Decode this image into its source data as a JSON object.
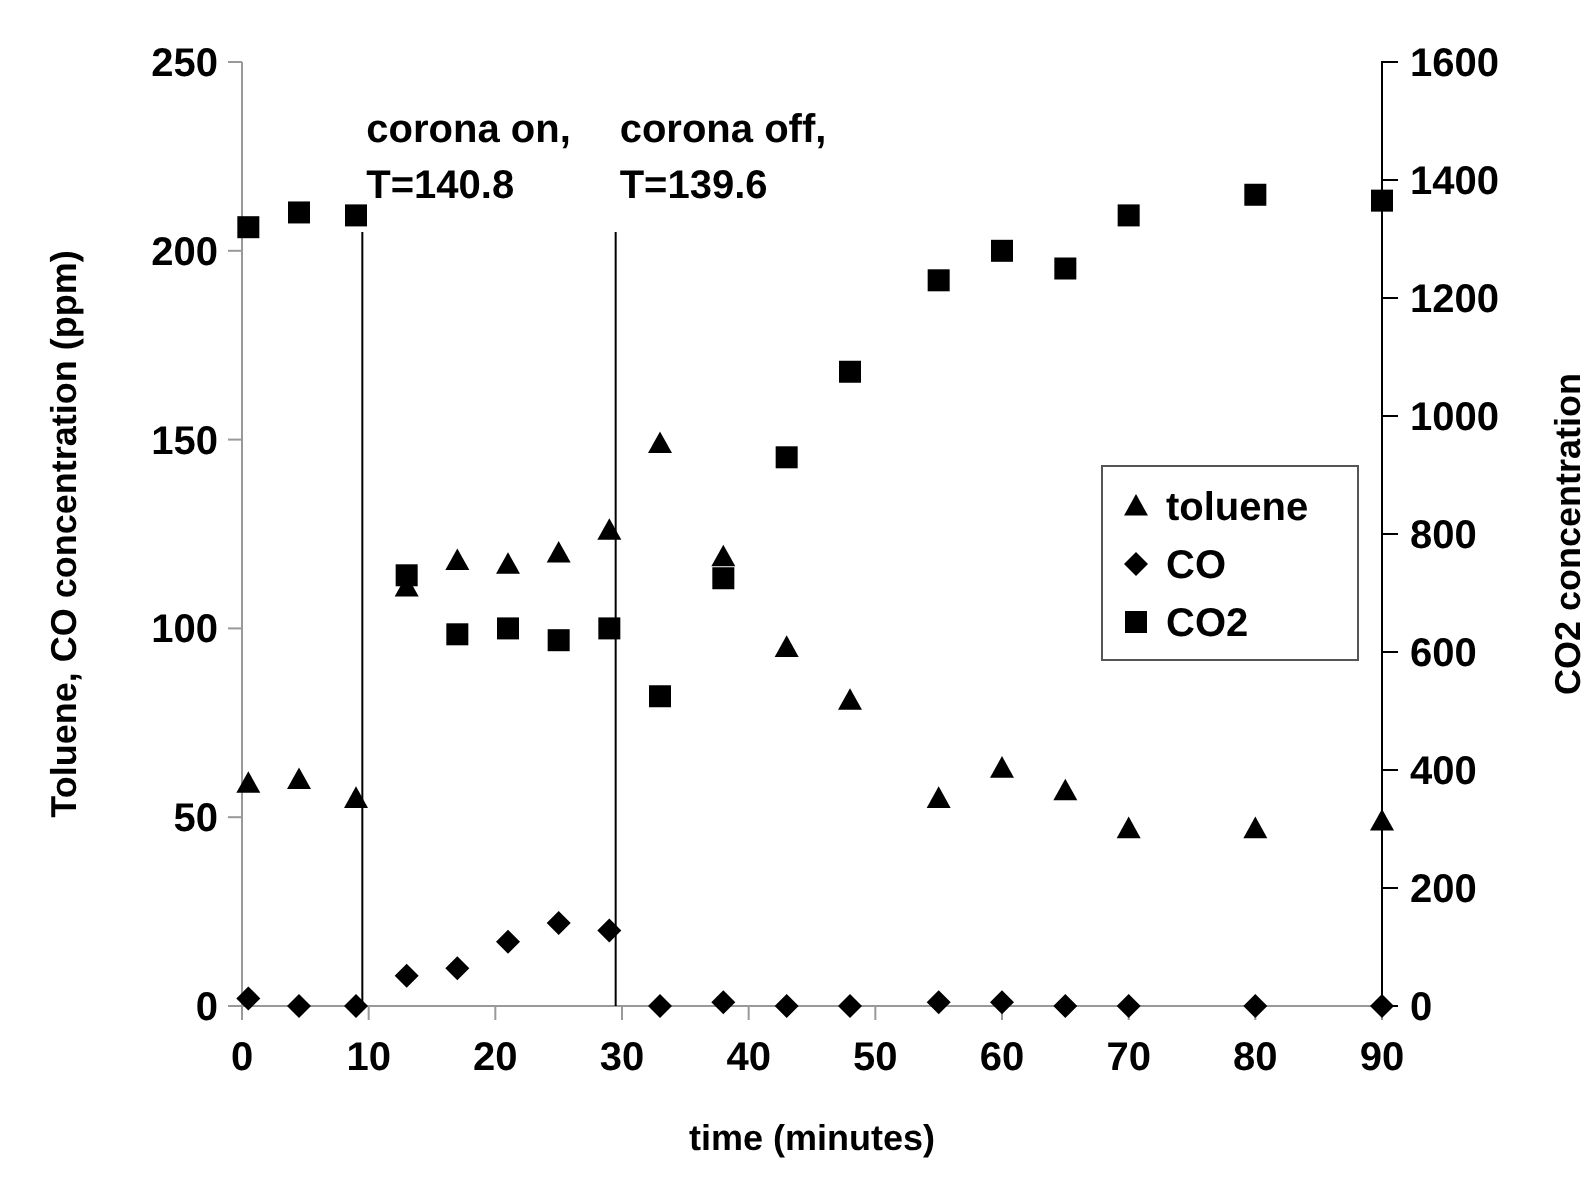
{
  "chart_data": {
    "type": "scatter",
    "xlabel": "time (minutes)",
    "ylabel": "Toluene, CO concentration (ppm)",
    "y2label": "CO2 concentration",
    "x": [
      0.5,
      4.5,
      9,
      13,
      17,
      21,
      25,
      29,
      33,
      38,
      43,
      48,
      55,
      60,
      65,
      70,
      80,
      90
    ],
    "xlim": [
      0,
      90
    ],
    "xticks": [
      0,
      10,
      20,
      30,
      40,
      50,
      60,
      70,
      80,
      90
    ],
    "ylim": [
      0,
      250
    ],
    "yticks": [
      0,
      50,
      100,
      150,
      200,
      250
    ],
    "y2lim": [
      0,
      1600
    ],
    "y2ticks": [
      0,
      200,
      400,
      600,
      800,
      1000,
      1200,
      1400,
      1600
    ],
    "series": [
      {
        "name": "toluene",
        "color": "#000000",
        "marker": "triangle",
        "values": [
          59,
          60,
          55,
          111,
          118,
          117,
          120,
          126,
          149,
          119,
          95,
          81,
          55,
          63,
          57,
          47,
          47,
          49
        ]
      },
      {
        "name": "CO",
        "color": "#000000",
        "marker": "diamond",
        "values": [
          2,
          0,
          0,
          8,
          10,
          17,
          22,
          20,
          0,
          1,
          0,
          0,
          1,
          1,
          0,
          0,
          0,
          0
        ]
      },
      {
        "name": "CO2",
        "color": "#000000",
        "marker": "square",
        "axis": "y2",
        "values": [
          1320,
          1345,
          1340,
          730,
          630,
          640,
          620,
          640,
          525,
          725,
          930,
          1075,
          1230,
          1280,
          1250,
          1340,
          1375,
          1365
        ]
      }
    ],
    "ref_lines": [
      {
        "axis": "x",
        "value": 9.5,
        "color": "#000000"
      },
      {
        "axis": "x",
        "value": 29.5,
        "color": "#000000"
      }
    ],
    "annotations": [
      "corona on,\nT=140.8",
      "corona off,\nT=139.6"
    ],
    "legend": "right",
    "grid": false
  }
}
